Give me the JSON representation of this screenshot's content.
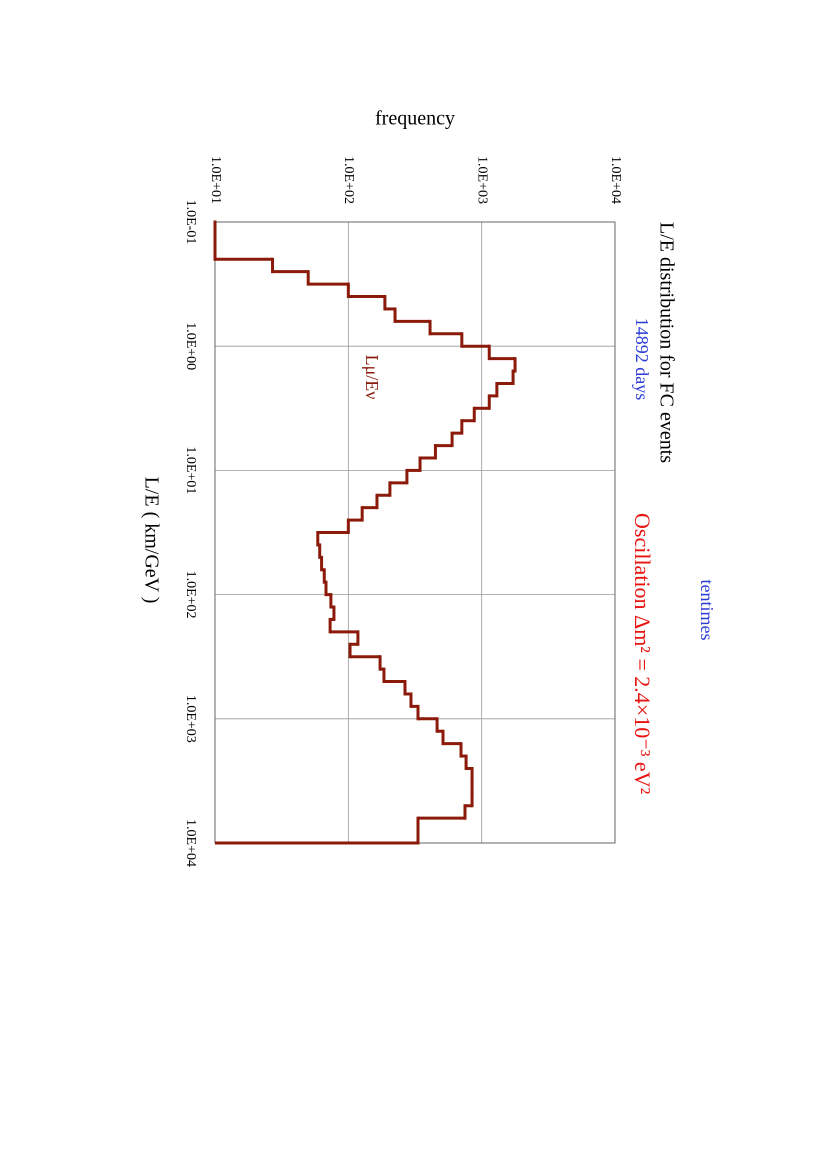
{
  "chart_data": {
    "type": "histogram",
    "title": "L/E distribution for FC events",
    "subtitle": "14892 days",
    "annotations": {
      "scale_note": "tentimes",
      "oscillation": "Oscillation Δm² = 2.4×10⁻³ eV²",
      "curve_label": "Lμ/Eν"
    },
    "x_label": "L/E  ( km/GeV )",
    "y_label": "frequency",
    "x_log": true,
    "y_log": true,
    "grid": true,
    "xlim": [
      0.1,
      10000
    ],
    "ylim": [
      10,
      10000
    ],
    "xticks": [
      {
        "value": 0.1,
        "label": "1.0E-01"
      },
      {
        "value": 1,
        "label": "1.0E+00"
      },
      {
        "value": 10,
        "label": "1.0E+01"
      },
      {
        "value": 100,
        "label": "1.0E+02"
      },
      {
        "value": 1000,
        "label": "1.0E+03"
      },
      {
        "value": 10000,
        "label": "1.0E+04"
      }
    ],
    "yticks": [
      {
        "value": 10,
        "label": "1.0E+01"
      },
      {
        "value": 100,
        "label": "1.0E+02"
      },
      {
        "value": 1000,
        "label": "1.0E+03"
      },
      {
        "value": 10000,
        "label": "1.0E+04"
      }
    ],
    "color": "#8b1a0a",
    "bins": [
      0.1,
      0.1259,
      0.1585,
      0.1995,
      0.2512,
      0.3162,
      0.3981,
      0.5012,
      0.631,
      0.7943,
      1,
      1.259,
      1.585,
      1.995,
      2.512,
      3.162,
      3.981,
      5.012,
      6.31,
      7.943,
      10,
      12.59,
      15.85,
      19.95,
      25.12,
      31.62,
      39.81,
      50.12,
      63.1,
      79.43,
      100,
      125.9,
      158.5,
      199.5,
      251.2,
      316.2,
      398.1,
      501.2,
      631,
      794.3,
      1000,
      1259,
      1585,
      1995,
      2512,
      3162,
      3981,
      5012,
      6310,
      7943,
      10000
    ],
    "values": [
      10,
      10,
      10,
      27,
      50,
      100,
      188,
      224,
      410,
      710,
      1140,
      1780,
      1720,
      1300,
      1140,
      880,
      710,
      600,
      450,
      345,
      275,
      205,
      164,
      127,
      100,
      59,
      61,
      63,
      66,
      68,
      74,
      78,
      73,
      118,
      103,
      173,
      185,
      266,
      295,
      333,
      463,
      513,
      700,
      764,
      847,
      847,
      847,
      750,
      333,
      333
    ]
  }
}
